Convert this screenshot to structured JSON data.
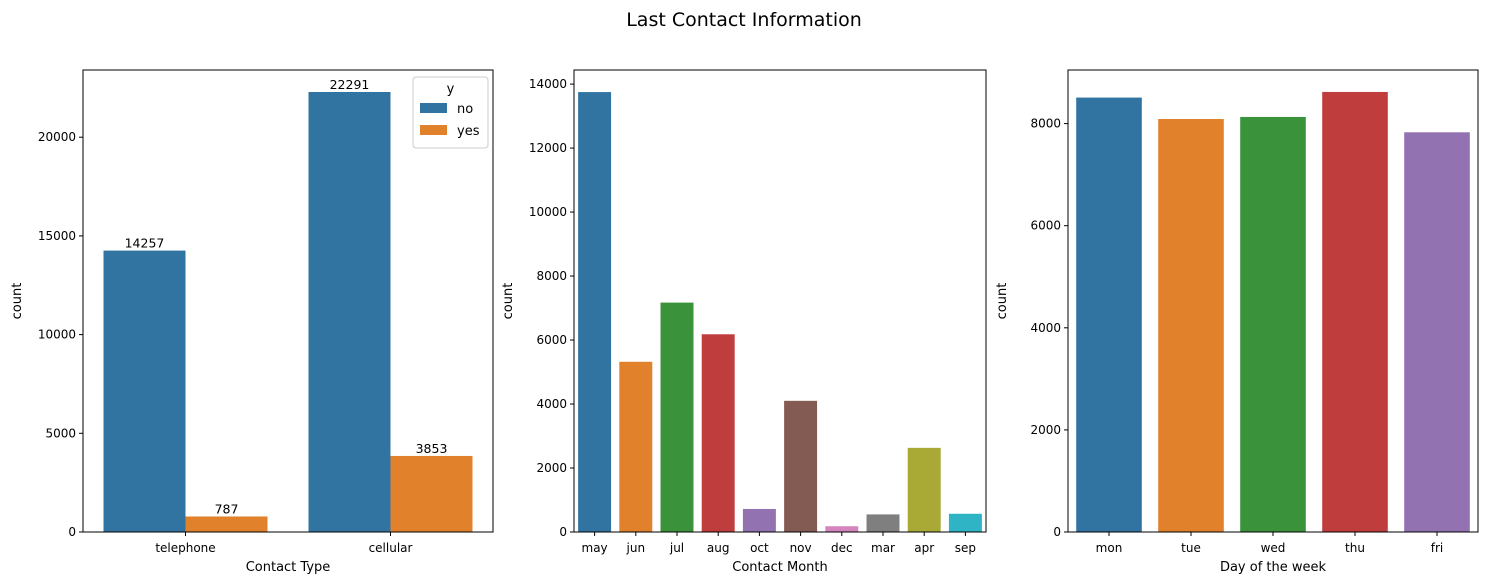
{
  "figure": {
    "title": "Last Contact Information"
  },
  "chart_data": [
    {
      "type": "bar",
      "title": "",
      "xlabel": "Contact Type",
      "ylabel": "count",
      "categories": [
        "telephone",
        "cellular"
      ],
      "series": [
        {
          "name": "no",
          "values": [
            14257,
            22291
          ],
          "color": "#3274a1"
        },
        {
          "name": "yes",
          "values": [
            787,
            3853
          ],
          "color": "#e1812c"
        }
      ],
      "data_labels": true,
      "ylim": [
        0,
        23405
      ],
      "yticks": [
        0,
        5000,
        10000,
        15000,
        20000
      ],
      "legend": {
        "title": "y",
        "placement": "top-right"
      },
      "grid": false
    },
    {
      "type": "bar",
      "title": "",
      "xlabel": "Contact Month",
      "ylabel": "count",
      "categories": [
        "may",
        "jun",
        "jul",
        "aug",
        "oct",
        "nov",
        "dec",
        "mar",
        "apr",
        "sep"
      ],
      "values": [
        13750,
        5320,
        7170,
        6180,
        720,
        4100,
        180,
        550,
        2630,
        570
      ],
      "colors": [
        "#3274a1",
        "#e1812c",
        "#3a923a",
        "#c03d3e",
        "#9372b2",
        "#845b53",
        "#d684bd",
        "#7f7f7f",
        "#a9aa35",
        "#2eb4c4"
      ],
      "ylim": [
        0,
        14440
      ],
      "yticks": [
        0,
        2000,
        4000,
        6000,
        8000,
        10000,
        12000,
        14000
      ],
      "grid": false
    },
    {
      "type": "bar",
      "title": "",
      "xlabel": "Day of the week",
      "ylabel": "count",
      "categories": [
        "mon",
        "tue",
        "wed",
        "thu",
        "fri"
      ],
      "values": [
        8510,
        8090,
        8130,
        8620,
        7830
      ],
      "colors": [
        "#3274a1",
        "#e1812c",
        "#3a923a",
        "#c03d3e",
        "#9372b2"
      ],
      "ylim": [
        0,
        9050
      ],
      "yticks": [
        0,
        2000,
        4000,
        6000,
        8000
      ],
      "grid": false
    }
  ]
}
